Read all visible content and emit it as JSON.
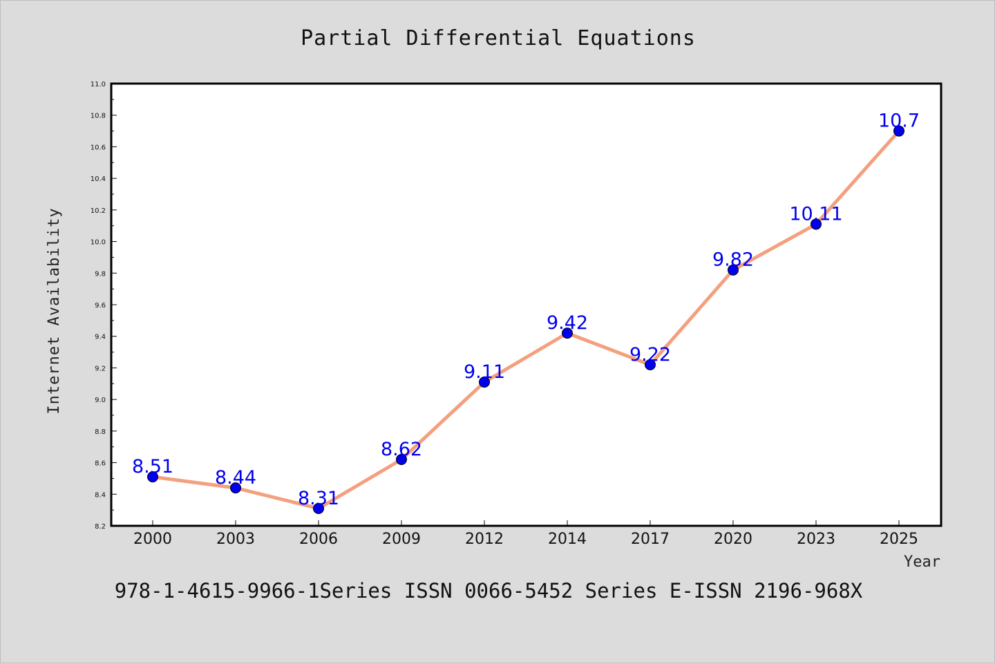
{
  "chart_data": {
    "type": "line",
    "title": "Partial Differential Equations",
    "xlabel": "Year",
    "ylabel": "Internet Availability",
    "categories": [
      "2000",
      "2003",
      "2006",
      "2009",
      "2012",
      "2014",
      "2017",
      "2020",
      "2023",
      "2025"
    ],
    "series": [
      {
        "values": [
          8.51,
          8.44,
          8.31,
          8.62,
          9.11,
          9.42,
          9.22,
          9.82,
          10.11,
          10.7
        ],
        "data_labels": [
          "8.51",
          "8.44",
          "8.31",
          "8.62",
          "9.11",
          "9.42",
          "9.22",
          "9.82",
          "10.11",
          "10.7"
        ],
        "line_color": "#f4a07f",
        "marker_color": "#0000ee"
      }
    ],
    "ylim": [
      8.2,
      11.0
    ],
    "yticks": [
      "8.2",
      "8.4",
      "8.6",
      "8.8",
      "9.0",
      "9.2",
      "9.4",
      "9.6",
      "9.8",
      "10.0",
      "10.2",
      "10.4",
      "10.6",
      "10.8",
      "11.0"
    ],
    "grid": false,
    "legend": "none",
    "background_color": "#dcdcdc",
    "plot_background_color": "#ffffff"
  },
  "footer": {
    "text": "978-1-4615-9966-1Series ISSN 0066-5452 Series E-ISSN 2196-968X"
  }
}
